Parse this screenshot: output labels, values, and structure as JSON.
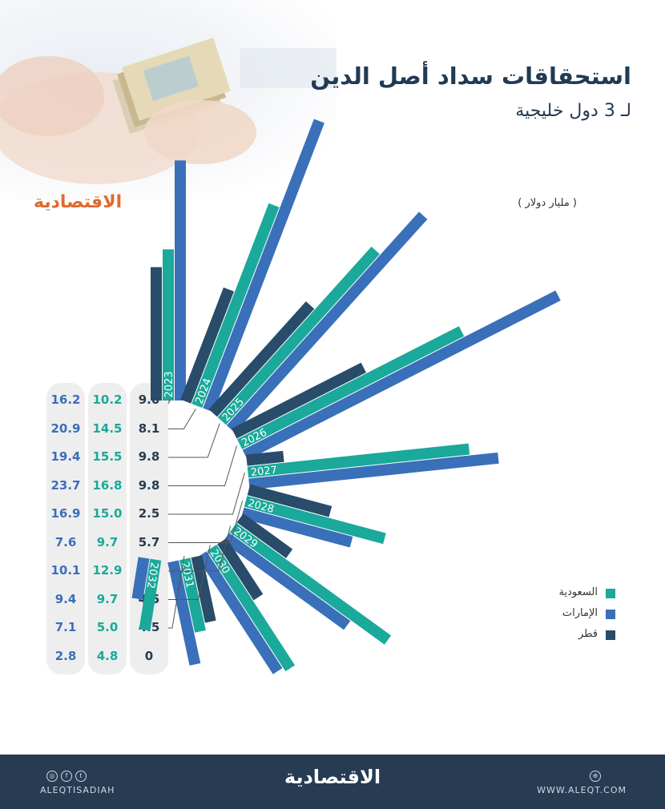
{
  "header": {
    "title": "استحقاقات سداد أصل الدين",
    "subtitle": "لـ 3 دول خليجية",
    "unit": "( مليار دولار )",
    "brand": "الاقتصادية"
  },
  "legend": [
    {
      "label": "السعودية",
      "color": "#1aa99a"
    },
    {
      "label": "الإمارات",
      "color": "#3a6fba"
    },
    {
      "label": "قطر",
      "color": "#284c6a"
    }
  ],
  "footer": {
    "brand": "الاقتصادية",
    "handle": "ALEQTISADIAH",
    "website": "WWW.ALEQT.COM"
  },
  "icons": [
    "instagram-icon",
    "facebook-icon",
    "twitter-icon",
    "globe-icon"
  ],
  "chart_data": {
    "type": "bar",
    "title": "استحقاقات سداد أصل الدين",
    "subtitle": "لـ 3 دول خليجية",
    "ylabel": "( مليار دولار )",
    "categories": [
      "2023",
      "2024",
      "2025",
      "2026",
      "2027",
      "2028",
      "2029",
      "2030",
      "2031",
      "2032"
    ],
    "series": [
      {
        "name": "قطر",
        "color": "#284c6a",
        "values": [
          9.0,
          8.1,
          9.8,
          9.8,
          2.5,
          5.7,
          4.1,
          4.5,
          4.5,
          0
        ]
      },
      {
        "name": "السعودية",
        "color": "#1aa99a",
        "values": [
          10.2,
          14.5,
          15.5,
          16.8,
          15.0,
          9.7,
          12.9,
          9.7,
          5.0,
          4.8
        ]
      },
      {
        "name": "الإمارات",
        "color": "#3a6fba",
        "values": [
          16.2,
          20.9,
          19.4,
          23.7,
          16.9,
          7.6,
          10.1,
          9.4,
          7.1,
          2.8
        ]
      }
    ]
  }
}
